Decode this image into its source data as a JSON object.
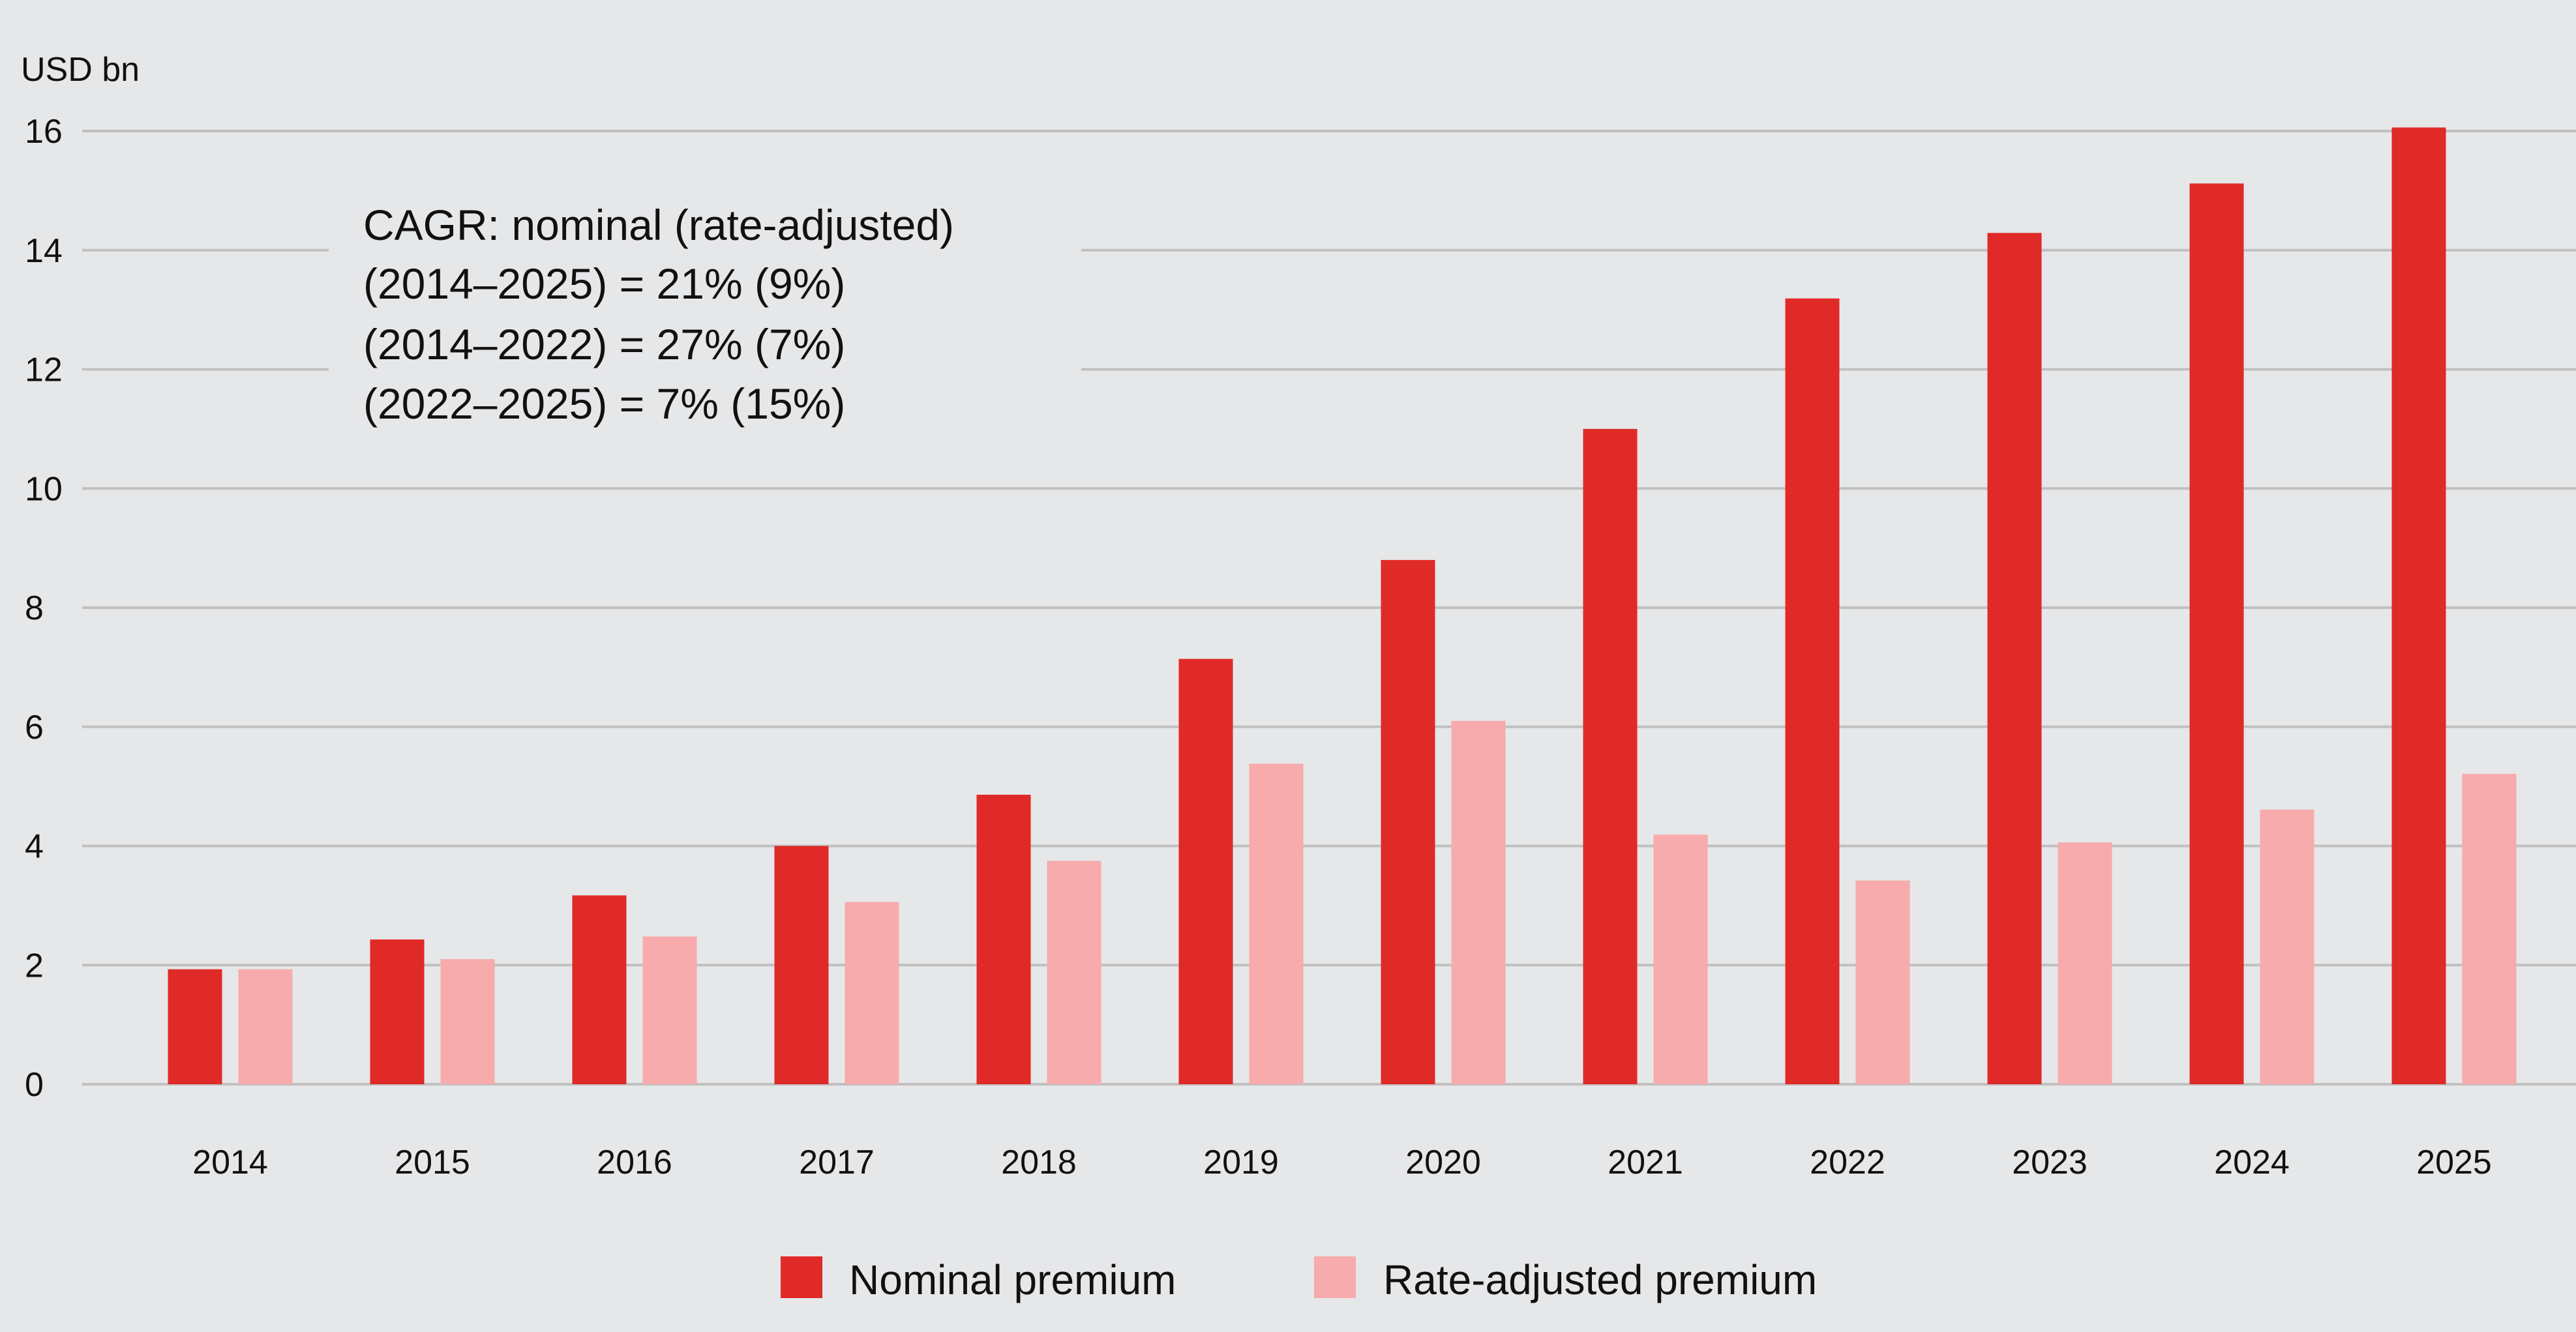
{
  "chart_data": {
    "type": "bar",
    "ylabel": "USD bn",
    "ylim": [
      0,
      16
    ],
    "yticks": [
      0,
      2,
      4,
      6,
      8,
      10,
      12,
      14,
      16
    ],
    "grid": true,
    "legend_placement": "bottom-center",
    "categories": [
      "2014",
      "2015",
      "2016",
      "2017",
      "2018",
      "2019",
      "2020",
      "2021",
      "2022",
      "2023",
      "2024",
      "2025"
    ],
    "series": [
      {
        "name": "Nominal premium",
        "color": "#e02a27",
        "values": [
          1.93,
          2.43,
          3.17,
          4.0,
          4.86,
          7.14,
          8.8,
          11.0,
          13.19,
          14.29,
          15.12,
          16.06
        ]
      },
      {
        "name": "Rate-adjusted premium",
        "color": "#f7abac",
        "values": [
          1.93,
          2.1,
          2.48,
          3.06,
          3.75,
          5.38,
          6.1,
          4.19,
          3.42,
          4.06,
          4.61,
          5.21
        ]
      }
    ],
    "annotation": [
      "CAGR: nominal (rate-adjusted)",
      "(2014–2025) = 21% (9%)",
      "(2014–2022) = 27% (7%)",
      "(2022–2025) = 7% (15%)"
    ]
  },
  "colors": {
    "background": "#e6e7e9",
    "grid": "#c0c0c0"
  }
}
